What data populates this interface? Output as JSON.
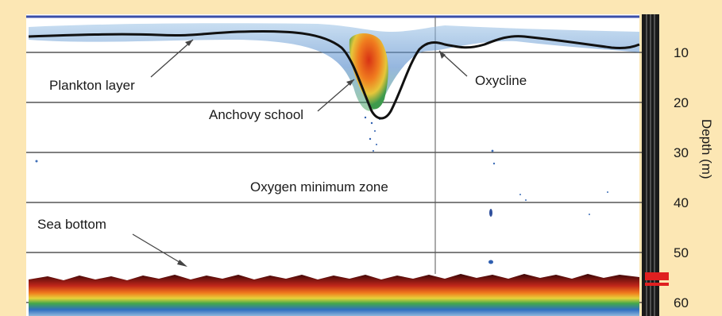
{
  "annotations": {
    "plankton_layer": "Plankton layer",
    "anchovy_school": "Anchovy school",
    "oxycline": "Oxycline",
    "oxygen_minimum_zone": "Oxygen minimum zone",
    "sea_bottom": "Sea bottom"
  },
  "depth_axis": {
    "label": "Depth (m)",
    "unit": "m",
    "ticks": [
      "10",
      "20",
      "30",
      "40",
      "50",
      "60"
    ]
  },
  "colors": {
    "frame_background": "#fce7b4",
    "echogram_background": "#ffffff",
    "top_line": "#3b4fa8",
    "oxycline_line": "#111111",
    "school_core": "#e84a1a",
    "bottom_echo": "#5a1010"
  }
}
